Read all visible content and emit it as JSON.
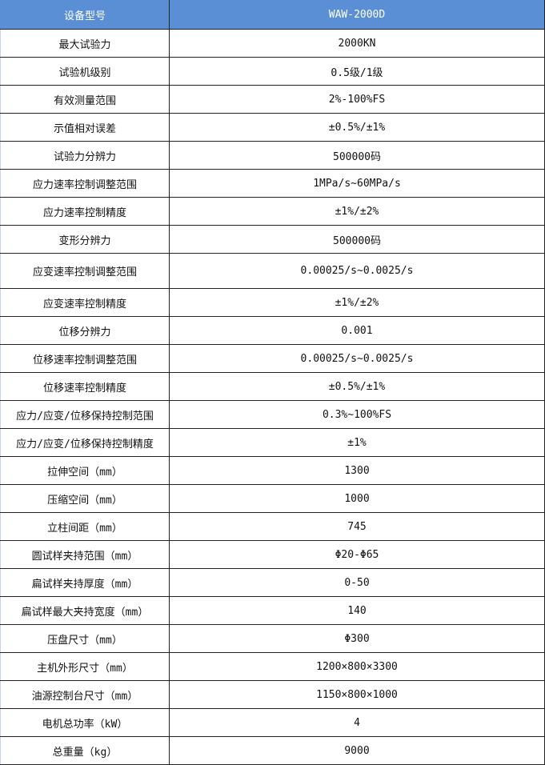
{
  "header": {
    "label": "设备型号",
    "value": "WAW-2000D"
  },
  "header_color": "#5a8fd5",
  "rows": [
    {
      "label": "最大试验力",
      "value": "2000KN"
    },
    {
      "label": "试验机级别",
      "value": "0.5级/1级"
    },
    {
      "label": "有效测量范围",
      "value": "2%-100%FS"
    },
    {
      "label": "示值相对误差",
      "value": "±0.5%/±1%"
    },
    {
      "label": "试验力分辨力",
      "value": "500000码"
    },
    {
      "label": "应力速率控制调整范围",
      "value": "1MPa/s~60MPa/s"
    },
    {
      "label": "应力速率控制精度",
      "value": "±1%/±2%"
    },
    {
      "label": "变形分辨力",
      "value": "500000码"
    },
    {
      "label": "应变速率控制调整范围",
      "value": "0.00025/s~0.0025/s"
    },
    {
      "label": "应变速率控制精度",
      "value": "±1%/±2%"
    },
    {
      "label": "位移分辨力",
      "value": "0.001"
    },
    {
      "label": "位移速率控制调整范围",
      "value": "0.00025/s~0.0025/s"
    },
    {
      "label": "位移速率控制精度",
      "value": "±0.5%/±1%"
    },
    {
      "label": "应力/应变/位移保持控制范围",
      "value": "0.3%~100%FS"
    },
    {
      "label": "应力/应变/位移保持控制精度",
      "value": "±1%"
    },
    {
      "label": "拉伸空间（mm）",
      "value": "1300"
    },
    {
      "label": "压缩空间（mm）",
      "value": "1000"
    },
    {
      "label": "立柱间距（mm）",
      "value": "745"
    },
    {
      "label": "圆试样夹持范围（mm）",
      "value": "Φ20-Φ65"
    },
    {
      "label": "扁试样夹持厚度（mm）",
      "value": "0-50"
    },
    {
      "label": "扁试样最大夹持宽度（mm）",
      "value": "140"
    },
    {
      "label": "压盘尺寸（mm）",
      "value": "Φ300"
    },
    {
      "label": "主机外形尺寸（mm）",
      "value": "1200×800×3300"
    },
    {
      "label": "油源控制台尺寸（mm）",
      "value": "1150×800×1000"
    },
    {
      "label": "电机总功率（kW）",
      "value": "4"
    },
    {
      "label": "总重量（kg）",
      "value": "9000"
    }
  ]
}
